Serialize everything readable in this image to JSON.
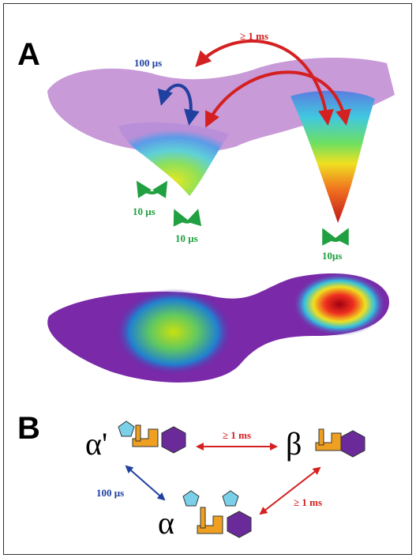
{
  "panel_a": {
    "label": "A",
    "landscape_labels": [
      "≥ 1 ms",
      "100 μs",
      "10 μs",
      "10 μs",
      "10μs"
    ]
  },
  "panel_b": {
    "label": "B",
    "states": [
      "α'",
      "β",
      "α"
    ],
    "transitions": [
      "≥ 1 ms",
      "100 μs",
      "≥ 1 ms"
    ]
  }
}
